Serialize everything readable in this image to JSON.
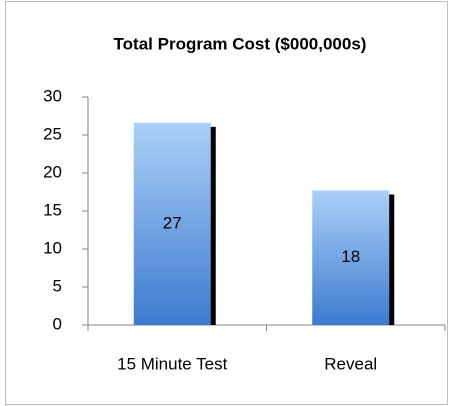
{
  "chart_data": {
    "type": "bar",
    "title": "Total Program Cost ($000,000s)",
    "categories": [
      "15 Minute Test",
      "Reveal"
    ],
    "values": [
      26.6,
      17.7
    ],
    "value_labels": [
      "27",
      "18"
    ],
    "color": "#5a95e0",
    "ylim": [
      0,
      30
    ],
    "yticks": [
      0,
      5,
      10,
      15,
      20,
      25,
      30
    ],
    "grid": false
  }
}
